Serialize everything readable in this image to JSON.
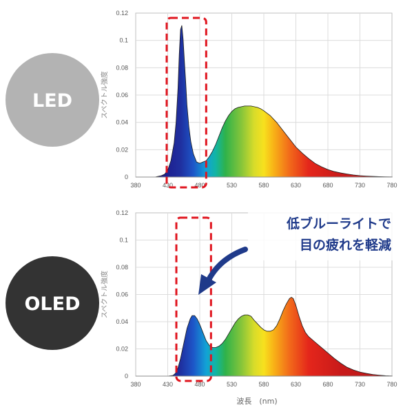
{
  "badges": [
    {
      "label": "LED",
      "color": "#b3b3b3"
    },
    {
      "label": "OLED",
      "color": "#333333"
    }
  ],
  "callout": {
    "line1": "低ブルーライトで",
    "line2": "目の疲れを軽減",
    "color": "#1f3a8a"
  },
  "highlight_color": "#e0141e",
  "chart_data": [
    {
      "type": "area",
      "title": "",
      "xlabel": "",
      "ylabel": "スペクトル強度",
      "xlim": [
        380,
        780
      ],
      "ylim": [
        0,
        0.12
      ],
      "xticks": [
        380,
        430,
        480,
        530,
        580,
        630,
        680,
        730,
        780
      ],
      "xtick_labels": [
        "380",
        "430",
        "480",
        "530",
        "580",
        "630",
        "680",
        "730",
        "780"
      ],
      "yticks": [
        0,
        0.02,
        0.04,
        0.06,
        0.08,
        0.1,
        0.12
      ],
      "ytick_labels": [
        "0",
        "0.02",
        "0.04",
        "0.06",
        "0.08",
        "0.1",
        "0.12"
      ],
      "grid": true,
      "fill": "spectrum",
      "highlight_range": [
        423,
        490
      ],
      "series": [
        {
          "x": [
            400,
            410,
            420,
            425,
            430,
            435,
            440,
            443,
            446,
            448,
            450,
            452,
            454,
            456,
            458,
            460,
            463,
            466,
            470,
            475,
            480,
            485,
            490,
            495,
            500,
            505,
            510,
            515,
            520,
            525,
            530,
            535,
            540,
            545,
            550,
            555,
            560,
            565,
            570,
            575,
            580,
            590,
            600,
            610,
            620,
            630,
            640,
            650,
            660,
            670,
            680,
            690,
            700,
            710,
            720,
            730,
            740,
            750,
            760,
            770,
            780
          ],
          "y": [
            0,
            0,
            0.001,
            0.002,
            0.005,
            0.012,
            0.025,
            0.04,
            0.065,
            0.09,
            0.108,
            0.111,
            0.101,
            0.085,
            0.07,
            0.053,
            0.037,
            0.026,
            0.017,
            0.011,
            0.01,
            0.011,
            0.012,
            0.015,
            0.019,
            0.024,
            0.03,
            0.036,
            0.041,
            0.045,
            0.048,
            0.05,
            0.051,
            0.0515,
            0.052,
            0.052,
            0.052,
            0.0515,
            0.051,
            0.05,
            0.0485,
            0.045,
            0.04,
            0.034,
            0.028,
            0.022,
            0.0175,
            0.0135,
            0.01,
            0.0075,
            0.0055,
            0.004,
            0.003,
            0.0022,
            0.0015,
            0.001,
            0.0007,
            0.0005,
            0.0003,
            0.0002,
            0.0001
          ]
        }
      ]
    },
    {
      "type": "area",
      "title": "",
      "xlabel": "波長　(nm)",
      "ylabel": "スペクトル強度",
      "xlim": [
        380,
        780
      ],
      "ylim": [
        0,
        0.12
      ],
      "xticks": [
        380,
        430,
        480,
        530,
        580,
        630,
        680,
        730,
        780
      ],
      "xtick_labels": [
        "380",
        "430",
        "480",
        "530",
        "580",
        "630",
        "680",
        "730",
        "780"
      ],
      "yticks": [
        0,
        0.02,
        0.04,
        0.06,
        0.08,
        0.1,
        0.12
      ],
      "ytick_labels": [
        "0",
        "0.02",
        "0.04",
        "0.06",
        "0.08",
        "0.1",
        "0.12"
      ],
      "grid": true,
      "fill": "spectrum",
      "highlight_range": [
        423,
        490
      ],
      "series": [
        {
          "x": [
            420,
            430,
            438,
            442,
            446,
            450,
            455,
            460,
            465,
            468,
            472,
            476,
            480,
            485,
            490,
            495,
            500,
            505,
            510,
            515,
            520,
            525,
            530,
            535,
            540,
            545,
            550,
            555,
            560,
            565,
            570,
            575,
            580,
            585,
            590,
            595,
            600,
            605,
            610,
            615,
            620,
            623,
            626,
            630,
            635,
            640,
            645,
            650,
            660,
            670,
            680,
            690,
            700,
            710,
            720,
            730,
            740,
            750,
            760,
            770,
            780
          ],
          "y": [
            0,
            0,
            0.0005,
            0.002,
            0.006,
            0.013,
            0.024,
            0.035,
            0.042,
            0.0445,
            0.0445,
            0.042,
            0.038,
            0.032,
            0.026,
            0.0225,
            0.021,
            0.021,
            0.022,
            0.024,
            0.027,
            0.031,
            0.035,
            0.039,
            0.042,
            0.044,
            0.045,
            0.045,
            0.044,
            0.041,
            0.0385,
            0.036,
            0.034,
            0.033,
            0.033,
            0.034,
            0.037,
            0.042,
            0.048,
            0.053,
            0.057,
            0.058,
            0.057,
            0.052,
            0.044,
            0.037,
            0.032,
            0.029,
            0.025,
            0.021,
            0.017,
            0.013,
            0.0095,
            0.0065,
            0.0045,
            0.003,
            0.002,
            0.0012,
            0.0007,
            0.0003,
            0.0001
          ]
        }
      ]
    }
  ]
}
